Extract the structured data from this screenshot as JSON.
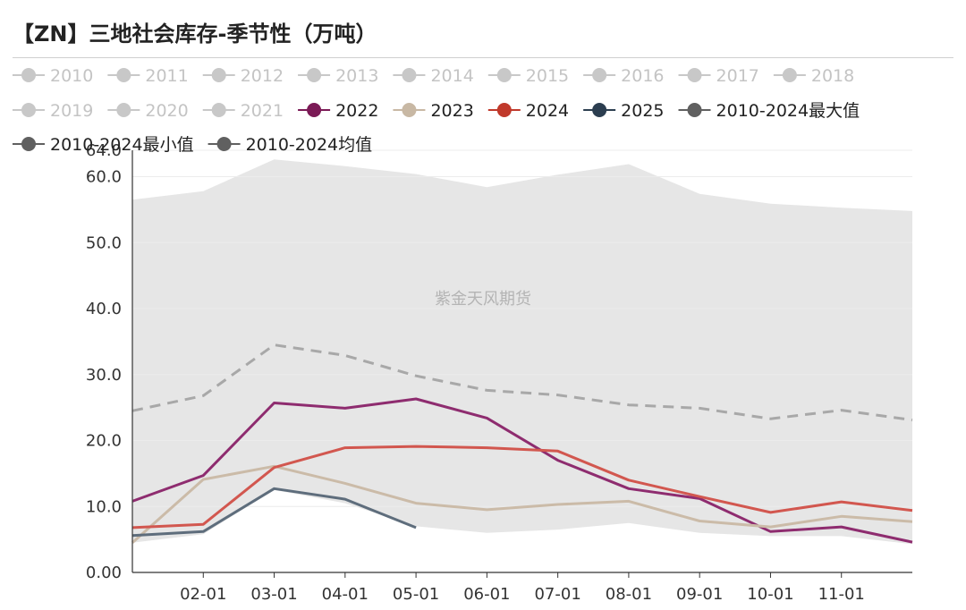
{
  "title": "【ZN】三地社会库存-季节性（万吨）",
  "watermark": "紫金天风期货",
  "legend": [
    {
      "name": "2010",
      "color": "#c8c8c8",
      "dim": true
    },
    {
      "name": "2011",
      "color": "#c8c8c8",
      "dim": true
    },
    {
      "name": "2012",
      "color": "#c8c8c8",
      "dim": true
    },
    {
      "name": "2013",
      "color": "#c8c8c8",
      "dim": true
    },
    {
      "name": "2014",
      "color": "#c8c8c8",
      "dim": true
    },
    {
      "name": "2015",
      "color": "#c8c8c8",
      "dim": true
    },
    {
      "name": "2016",
      "color": "#c8c8c8",
      "dim": true
    },
    {
      "name": "2017",
      "color": "#c8c8c8",
      "dim": true
    },
    {
      "name": "2018",
      "color": "#c8c8c8",
      "dim": true
    },
    {
      "name": "2019",
      "color": "#c8c8c8",
      "dim": true
    },
    {
      "name": "2020",
      "color": "#c8c8c8",
      "dim": true
    },
    {
      "name": "2021",
      "color": "#c8c8c8",
      "dim": true
    },
    {
      "name": "2022",
      "color": "#7b1a56",
      "dim": false
    },
    {
      "name": "2023",
      "color": "#c8b8a4",
      "dim": false
    },
    {
      "name": "2024",
      "color": "#c0392b",
      "dim": false
    },
    {
      "name": "2025",
      "color": "#2c3e50",
      "dim": false
    },
    {
      "name": "2010-2024最大值",
      "color": "#606060",
      "dim": false
    },
    {
      "name": "2010-2024最小值",
      "color": "#606060",
      "dim": false
    },
    {
      "name": "2010-2024均值",
      "color": "#606060",
      "dim": false
    }
  ],
  "chart_data": {
    "type": "line",
    "title": "【ZN】三地社会库存-季节性（万吨）",
    "x_ticks": [
      "02-01",
      "03-01",
      "04-01",
      "05-01",
      "06-01",
      "07-01",
      "08-01",
      "09-01",
      "10-01",
      "11-01"
    ],
    "y_ticks": [
      "0.00",
      "10.0",
      "20.0",
      "30.0",
      "40.0",
      "50.0",
      "60.0",
      "64.0"
    ],
    "ylim": [
      0,
      64
    ],
    "x_positions": [
      0,
      1,
      2,
      3,
      4,
      5,
      6,
      7,
      8,
      9,
      10,
      11
    ],
    "max_band": [
      56.5,
      57.8,
      62.6,
      61.6,
      60.4,
      58.4,
      60.3,
      61.9,
      57.4,
      55.9,
      55.3,
      54.8
    ],
    "min_band": [
      4.5,
      5.8,
      12.5,
      10.5,
      7.0,
      6.0,
      6.5,
      7.5,
      6.0,
      5.5,
      5.5,
      4.3
    ],
    "grid": true,
    "series": [
      {
        "name": "2022",
        "color": "#8e2c6f",
        "dashed": false,
        "values": [
          10.8,
          14.7,
          25.7,
          24.9,
          26.3,
          23.4,
          17.0,
          12.7,
          11.2,
          6.2,
          6.9,
          4.6
        ]
      },
      {
        "name": "2023",
        "color": "#cbbba8",
        "dashed": false,
        "values": [
          4.5,
          14.1,
          16.1,
          13.5,
          10.5,
          9.5,
          10.3,
          10.8,
          7.8,
          6.9,
          8.5,
          7.7
        ]
      },
      {
        "name": "2024",
        "color": "#d2574f",
        "dashed": false,
        "values": [
          6.8,
          7.3,
          15.9,
          18.9,
          19.1,
          18.9,
          18.4,
          14.0,
          11.5,
          9.1,
          10.7,
          9.4
        ]
      },
      {
        "name": "2025",
        "color": "#5e6d7c",
        "dashed": false,
        "values": [
          5.6,
          6.2,
          12.7,
          11.1,
          6.8,
          null,
          null,
          null,
          null,
          null,
          null,
          null
        ]
      },
      {
        "name": "2010-2024均值",
        "color": "#a8a8a8",
        "dashed": true,
        "values": [
          24.5,
          26.8,
          34.5,
          32.9,
          29.8,
          27.6,
          26.9,
          25.4,
          24.9,
          23.3,
          24.6,
          23.1
        ]
      }
    ]
  }
}
